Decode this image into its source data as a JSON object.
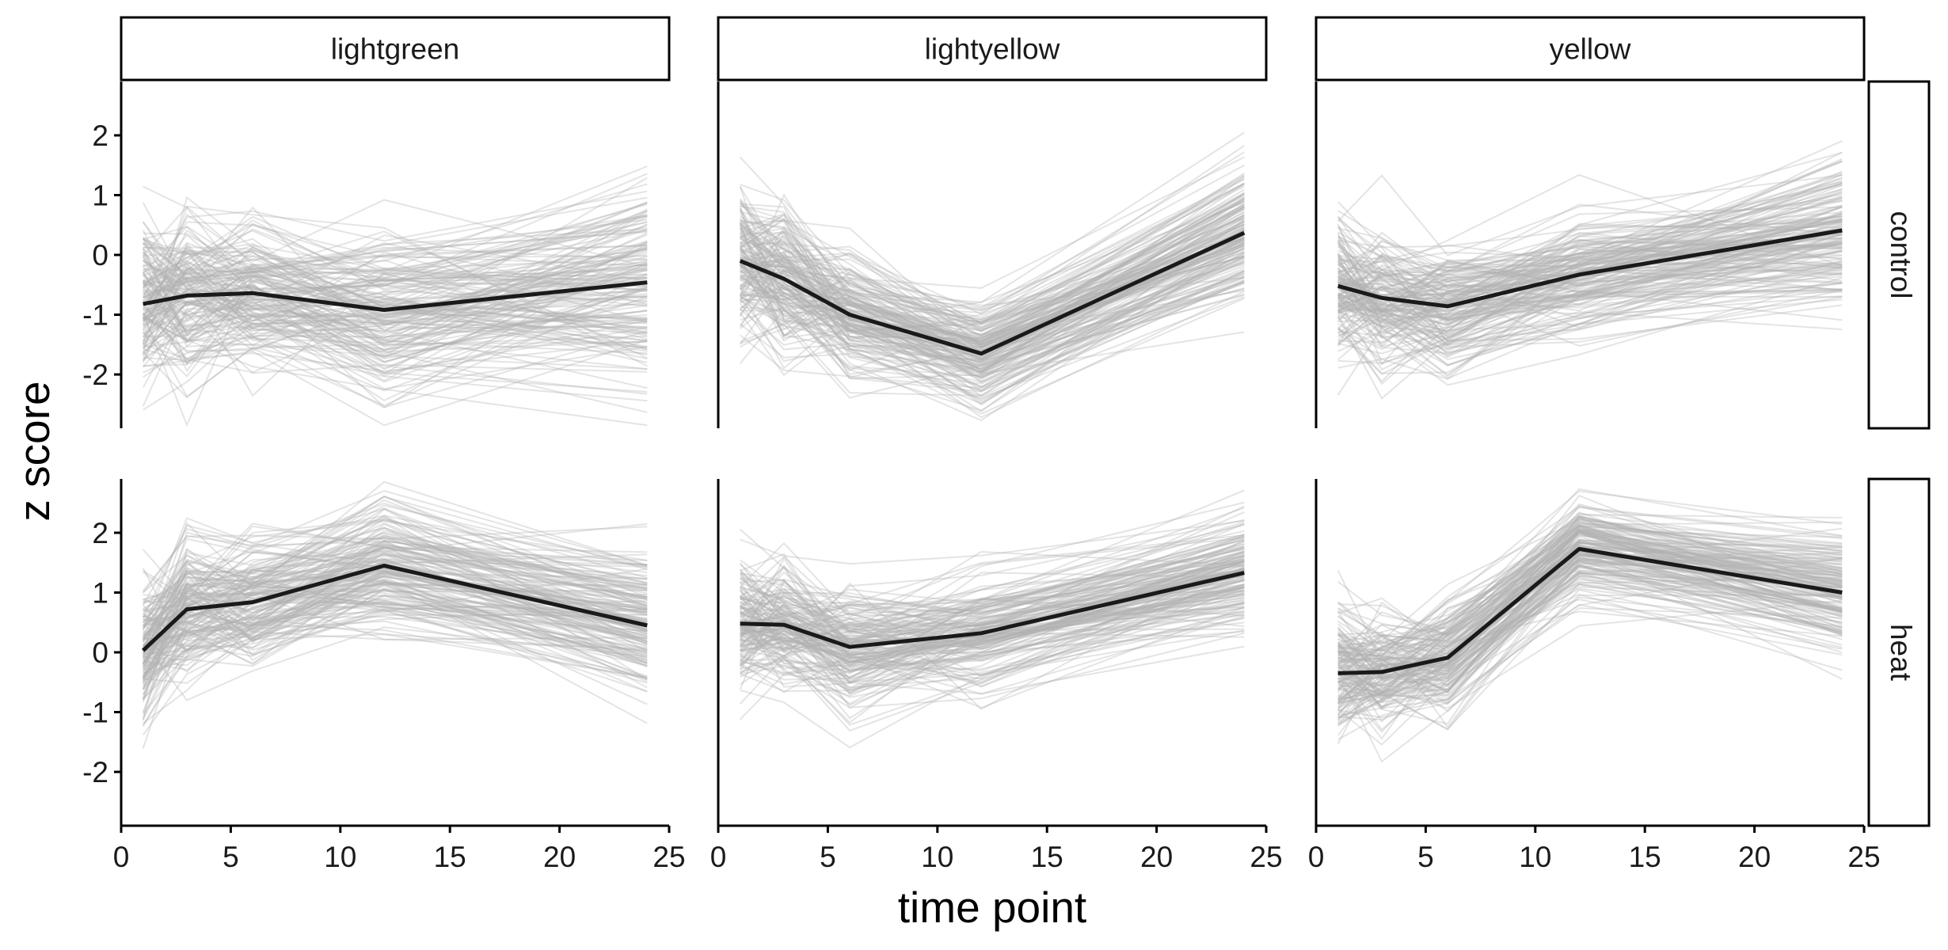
{
  "chart_data": {
    "type": "line",
    "xlabel": "time point",
    "ylabel": "z score",
    "xlim": [
      0,
      25
    ],
    "ylim": [
      -2.9,
      2.9
    ],
    "x_ticks": [
      0,
      5,
      10,
      15,
      20,
      25
    ],
    "y_ticks": [
      -2,
      -1,
      0,
      1,
      2
    ],
    "y_tick_labels": [
      "-2",
      "-1",
      "0",
      "1",
      "2"
    ],
    "columns": [
      "lightgreen",
      "lightyellow",
      "yellow"
    ],
    "rows": [
      "control",
      "heat"
    ],
    "time_points": [
      1,
      3,
      6,
      12,
      24
    ],
    "individual_line_color": "#b3b3b3",
    "mean_line_color": "#1a1a1a",
    "panels": [
      {
        "column": "lightgreen",
        "row": "control",
        "mean": [
          -0.82,
          -0.68,
          -0.64,
          -0.92,
          -0.46
        ],
        "spread": [
          0.75,
          0.65,
          0.6,
          0.7,
          0.95
        ]
      },
      {
        "column": "lightyellow",
        "row": "control",
        "mean": [
          -0.1,
          -0.4,
          -1.0,
          -1.65,
          0.37
        ],
        "spread": [
          0.6,
          0.55,
          0.45,
          0.35,
          0.45
        ]
      },
      {
        "column": "yellow",
        "row": "control",
        "mean": [
          -0.52,
          -0.72,
          -0.86,
          -0.33,
          0.41
        ],
        "spread": [
          0.55,
          0.5,
          0.45,
          0.45,
          0.6
        ]
      },
      {
        "column": "lightgreen",
        "row": "heat",
        "mean": [
          0.03,
          0.72,
          0.84,
          1.45,
          0.45
        ],
        "spread": [
          0.55,
          0.5,
          0.5,
          0.45,
          0.55
        ]
      },
      {
        "column": "lightyellow",
        "row": "heat",
        "mean": [
          0.48,
          0.46,
          0.09,
          0.32,
          1.33
        ],
        "spread": [
          0.45,
          0.45,
          0.5,
          0.5,
          0.35
        ]
      },
      {
        "column": "yellow",
        "row": "heat",
        "mean": [
          -0.35,
          -0.33,
          -0.09,
          1.73,
          1.0
        ],
        "spread": [
          0.45,
          0.45,
          0.4,
          0.35,
          0.45
        ]
      }
    ]
  }
}
